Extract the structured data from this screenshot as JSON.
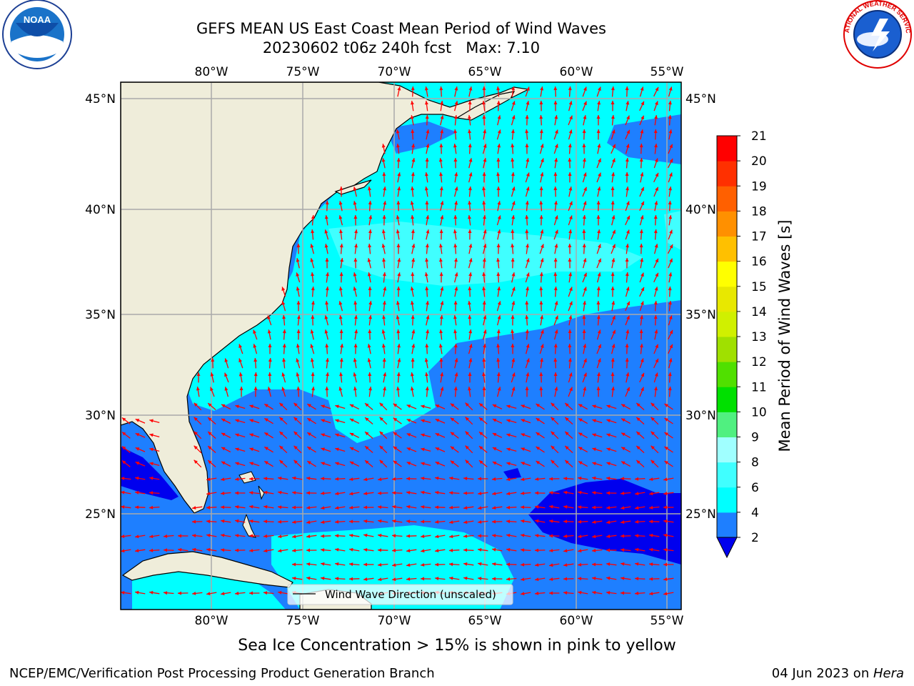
{
  "header": {
    "title": "GEFS MEAN US East Coast Mean Period of Wind Waves",
    "subtitle": "20230602 t06z 240h fcst   Max: 7.10"
  },
  "map": {
    "lon_labels": [
      "80°W",
      "75°W",
      "70°W",
      "65°W",
      "60°W",
      "55°W"
    ],
    "lat_labels": [
      "45°N",
      "40°N",
      "35°N",
      "30°N",
      "25°N"
    ],
    "legend_label": "Wind Wave Direction (unscaled)",
    "arrow_color": "#ff0000",
    "land_color": "#efedda"
  },
  "colorbar": {
    "label": "Mean Period of Wind Waves [s]",
    "ticks": [
      "2",
      "4",
      "6",
      "8",
      "9",
      "10",
      "11",
      "12",
      "13",
      "14",
      "15",
      "16",
      "17",
      "18",
      "19",
      "20",
      "21"
    ],
    "colors": [
      "#0000ee",
      "#1e7fff",
      "#00ffff",
      "#40ffff",
      "#a0ffff",
      "#50f080",
      "#00e000",
      "#50e000",
      "#a0e000",
      "#d0f000",
      "#e8e800",
      "#ffff00",
      "#ffc000",
      "#ff9000",
      "#ff6000",
      "#ff3000",
      "#ff0000"
    ]
  },
  "notes": {
    "sea_ice": "Sea Ice Concentration > 15% is shown in pink to yellow"
  },
  "footer": {
    "left": "NCEP/EMC/Verification Post Processing Product Generation Branch",
    "date": "04 Jun 2023 on ",
    "machine": "Hera"
  },
  "logos": {
    "left": "NOAA",
    "right": "NATIONAL WEATHER SERVICE"
  }
}
